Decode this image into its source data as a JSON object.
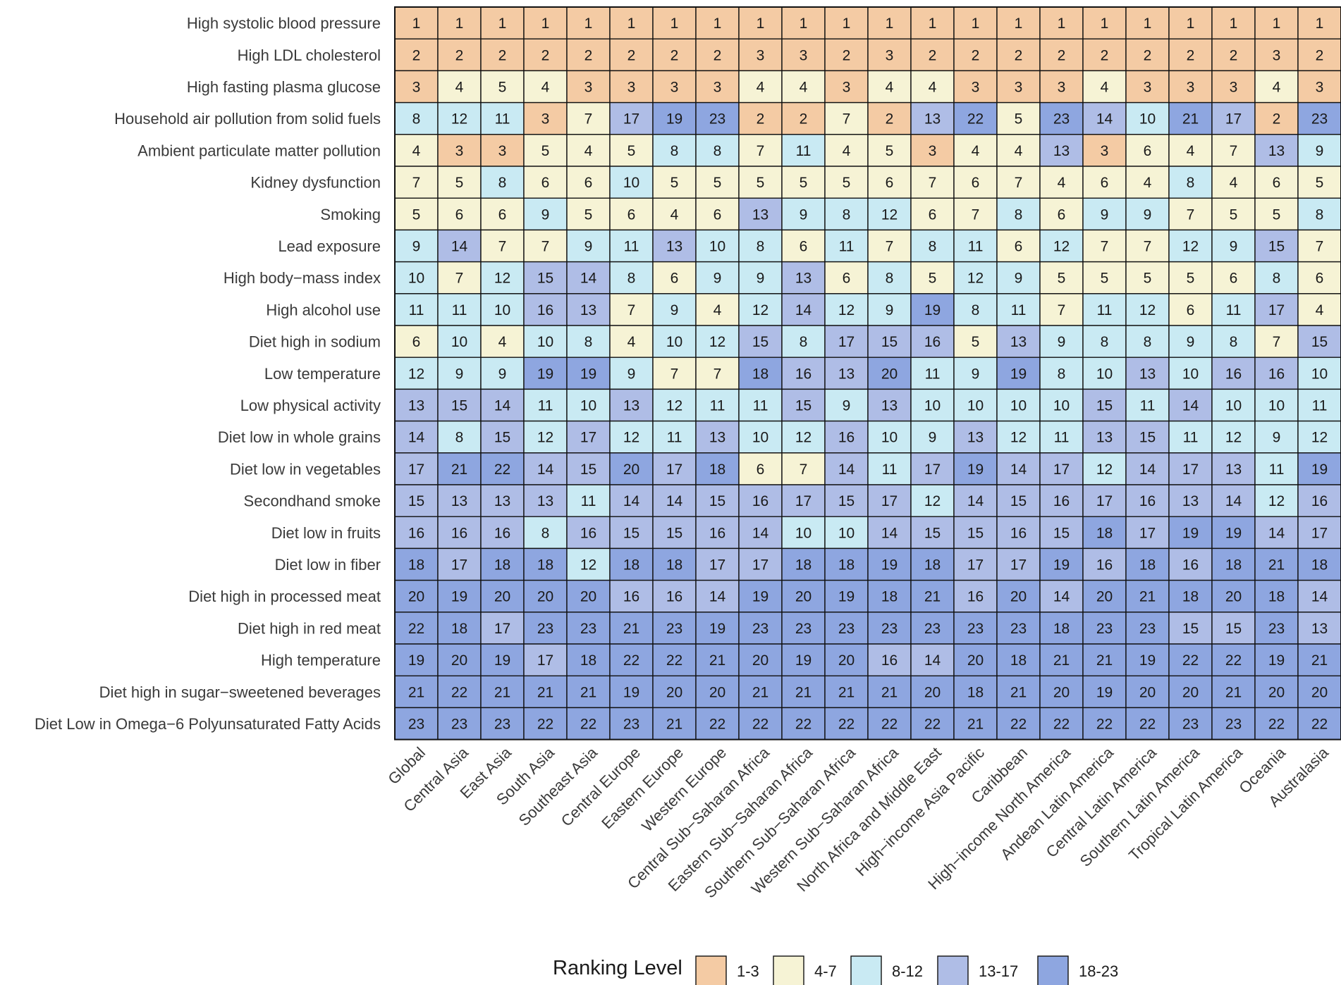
{
  "chart_data": {
    "type": "heatmap",
    "title": "",
    "xlabel": "",
    "ylabel": "",
    "columns": [
      "Global",
      "Central Asia",
      "East Asia",
      "South Asia",
      "Southeast Asia",
      "Central Europe",
      "Eastern Europe",
      "Western Europe",
      "Central Sub−Saharan Africa",
      "Eastern Sub−Saharan Africa",
      "Southern Sub−Saharan Africa",
      "Western Sub−Saharan Africa",
      "North Africa and Middle East",
      "High−income Asia Pacific",
      "Caribbean",
      "High−income North America",
      "Andean Latin America",
      "Central Latin America",
      "Southern Latin America",
      "Tropical Latin America",
      "Oceania",
      "Australasia"
    ],
    "rows": [
      {
        "label": "High systolic blood pressure",
        "values": [
          1,
          1,
          1,
          1,
          1,
          1,
          1,
          1,
          1,
          1,
          1,
          1,
          1,
          1,
          1,
          1,
          1,
          1,
          1,
          1,
          1,
          1
        ]
      },
      {
        "label": "High LDL cholesterol",
        "values": [
          2,
          2,
          2,
          2,
          2,
          2,
          2,
          2,
          3,
          3,
          2,
          3,
          2,
          2,
          2,
          2,
          2,
          2,
          2,
          2,
          3,
          2
        ]
      },
      {
        "label": "High fasting plasma glucose",
        "values": [
          3,
          4,
          5,
          4,
          3,
          3,
          3,
          3,
          4,
          4,
          3,
          4,
          4,
          3,
          3,
          3,
          4,
          3,
          3,
          3,
          4,
          3
        ]
      },
      {
        "label": "Household air pollution from solid fuels",
        "values": [
          8,
          12,
          11,
          3,
          7,
          17,
          19,
          23,
          2,
          2,
          7,
          2,
          13,
          22,
          5,
          23,
          14,
          10,
          21,
          17,
          2,
          23
        ]
      },
      {
        "label": "Ambient particulate matter pollution",
        "values": [
          4,
          3,
          3,
          5,
          4,
          5,
          8,
          8,
          7,
          11,
          4,
          5,
          3,
          4,
          4,
          13,
          3,
          6,
          4,
          7,
          13,
          9
        ]
      },
      {
        "label": "Kidney dysfunction",
        "values": [
          7,
          5,
          8,
          6,
          6,
          10,
          5,
          5,
          5,
          5,
          5,
          6,
          7,
          6,
          7,
          4,
          6,
          4,
          8,
          4,
          6,
          5
        ]
      },
      {
        "label": "Smoking",
        "values": [
          5,
          6,
          6,
          9,
          5,
          6,
          4,
          6,
          13,
          9,
          8,
          12,
          6,
          7,
          8,
          6,
          9,
          9,
          7,
          5,
          5,
          8
        ]
      },
      {
        "label": "Lead exposure",
        "values": [
          9,
          14,
          7,
          7,
          9,
          11,
          13,
          10,
          8,
          6,
          11,
          7,
          8,
          11,
          6,
          12,
          7,
          7,
          12,
          9,
          15,
          7
        ]
      },
      {
        "label": "High body−mass index",
        "values": [
          10,
          7,
          12,
          15,
          14,
          8,
          6,
          9,
          9,
          13,
          6,
          8,
          5,
          12,
          9,
          5,
          5,
          5,
          5,
          6,
          8,
          6
        ]
      },
      {
        "label": "High alcohol use",
        "values": [
          11,
          11,
          10,
          16,
          13,
          7,
          9,
          4,
          12,
          14,
          12,
          9,
          19,
          8,
          11,
          7,
          11,
          12,
          6,
          11,
          17,
          4
        ]
      },
      {
        "label": "Diet high in sodium",
        "values": [
          6,
          10,
          4,
          10,
          8,
          4,
          10,
          12,
          15,
          8,
          17,
          15,
          16,
          5,
          13,
          9,
          8,
          8,
          9,
          8,
          7,
          15
        ]
      },
      {
        "label": "Low temperature",
        "values": [
          12,
          9,
          9,
          19,
          19,
          9,
          7,
          7,
          18,
          16,
          13,
          20,
          11,
          9,
          19,
          8,
          10,
          13,
          10,
          16,
          16,
          10
        ]
      },
      {
        "label": "Low physical activity",
        "values": [
          13,
          15,
          14,
          11,
          10,
          13,
          12,
          11,
          11,
          15,
          9,
          13,
          10,
          10,
          10,
          10,
          15,
          11,
          14,
          10,
          10,
          11
        ]
      },
      {
        "label": "Diet low in whole grains",
        "values": [
          14,
          8,
          15,
          12,
          17,
          12,
          11,
          13,
          10,
          12,
          16,
          10,
          9,
          13,
          12,
          11,
          13,
          15,
          11,
          12,
          9,
          12
        ]
      },
      {
        "label": "Diet low in vegetables",
        "values": [
          17,
          21,
          22,
          14,
          15,
          20,
          17,
          18,
          6,
          7,
          14,
          11,
          17,
          19,
          14,
          17,
          12,
          14,
          17,
          13,
          11,
          19
        ]
      },
      {
        "label": "Secondhand smoke",
        "values": [
          15,
          13,
          13,
          13,
          11,
          14,
          14,
          15,
          16,
          17,
          15,
          17,
          12,
          14,
          15,
          16,
          17,
          16,
          13,
          14,
          12,
          16
        ]
      },
      {
        "label": "Diet low in fruits",
        "values": [
          16,
          16,
          16,
          8,
          16,
          15,
          15,
          16,
          14,
          10,
          10,
          14,
          15,
          15,
          16,
          15,
          18,
          17,
          19,
          19,
          14,
          17
        ]
      },
      {
        "label": "Diet low in fiber",
        "values": [
          18,
          17,
          18,
          18,
          12,
          18,
          18,
          17,
          17,
          18,
          18,
          19,
          18,
          17,
          17,
          19,
          16,
          18,
          16,
          18,
          21,
          18
        ]
      },
      {
        "label": "Diet high in processed meat",
        "values": [
          20,
          19,
          20,
          20,
          20,
          16,
          16,
          14,
          19,
          20,
          19,
          18,
          21,
          16,
          20,
          14,
          20,
          21,
          18,
          20,
          18,
          14
        ]
      },
      {
        "label": "Diet high in red meat",
        "values": [
          22,
          18,
          17,
          23,
          23,
          21,
          23,
          19,
          23,
          23,
          23,
          23,
          23,
          23,
          23,
          18,
          23,
          23,
          15,
          15,
          23,
          13
        ]
      },
      {
        "label": "High temperature",
        "values": [
          19,
          20,
          19,
          17,
          18,
          22,
          22,
          21,
          20,
          19,
          20,
          16,
          14,
          20,
          18,
          21,
          21,
          19,
          22,
          22,
          19,
          21
        ]
      },
      {
        "label": "Diet high in sugar−sweetened beverages",
        "values": [
          21,
          22,
          21,
          21,
          21,
          19,
          20,
          20,
          21,
          21,
          21,
          21,
          20,
          18,
          21,
          20,
          19,
          20,
          20,
          21,
          20,
          20
        ]
      },
      {
        "label": "Diet Low in Omega−6 Polyunsaturated Fatty Acids",
        "values": [
          23,
          23,
          23,
          22,
          22,
          23,
          21,
          22,
          22,
          22,
          22,
          22,
          22,
          21,
          22,
          22,
          22,
          22,
          23,
          23,
          22,
          22
        ]
      }
    ],
    "legend": {
      "title": "Ranking Level",
      "position": "bottom",
      "levels": [
        {
          "label": "1-3",
          "min": 1,
          "max": 3,
          "color": "#F4CBA4"
        },
        {
          "label": "4-7",
          "min": 4,
          "max": 7,
          "color": "#F6F3D5"
        },
        {
          "label": "8-12",
          "min": 8,
          "max": 12,
          "color": "#C9EAF3"
        },
        {
          "label": "13-17",
          "min": 13,
          "max": 17,
          "color": "#AFBDE6"
        },
        {
          "label": "18-23",
          "min": 18,
          "max": 23,
          "color": "#8EA6E0"
        }
      ]
    }
  }
}
